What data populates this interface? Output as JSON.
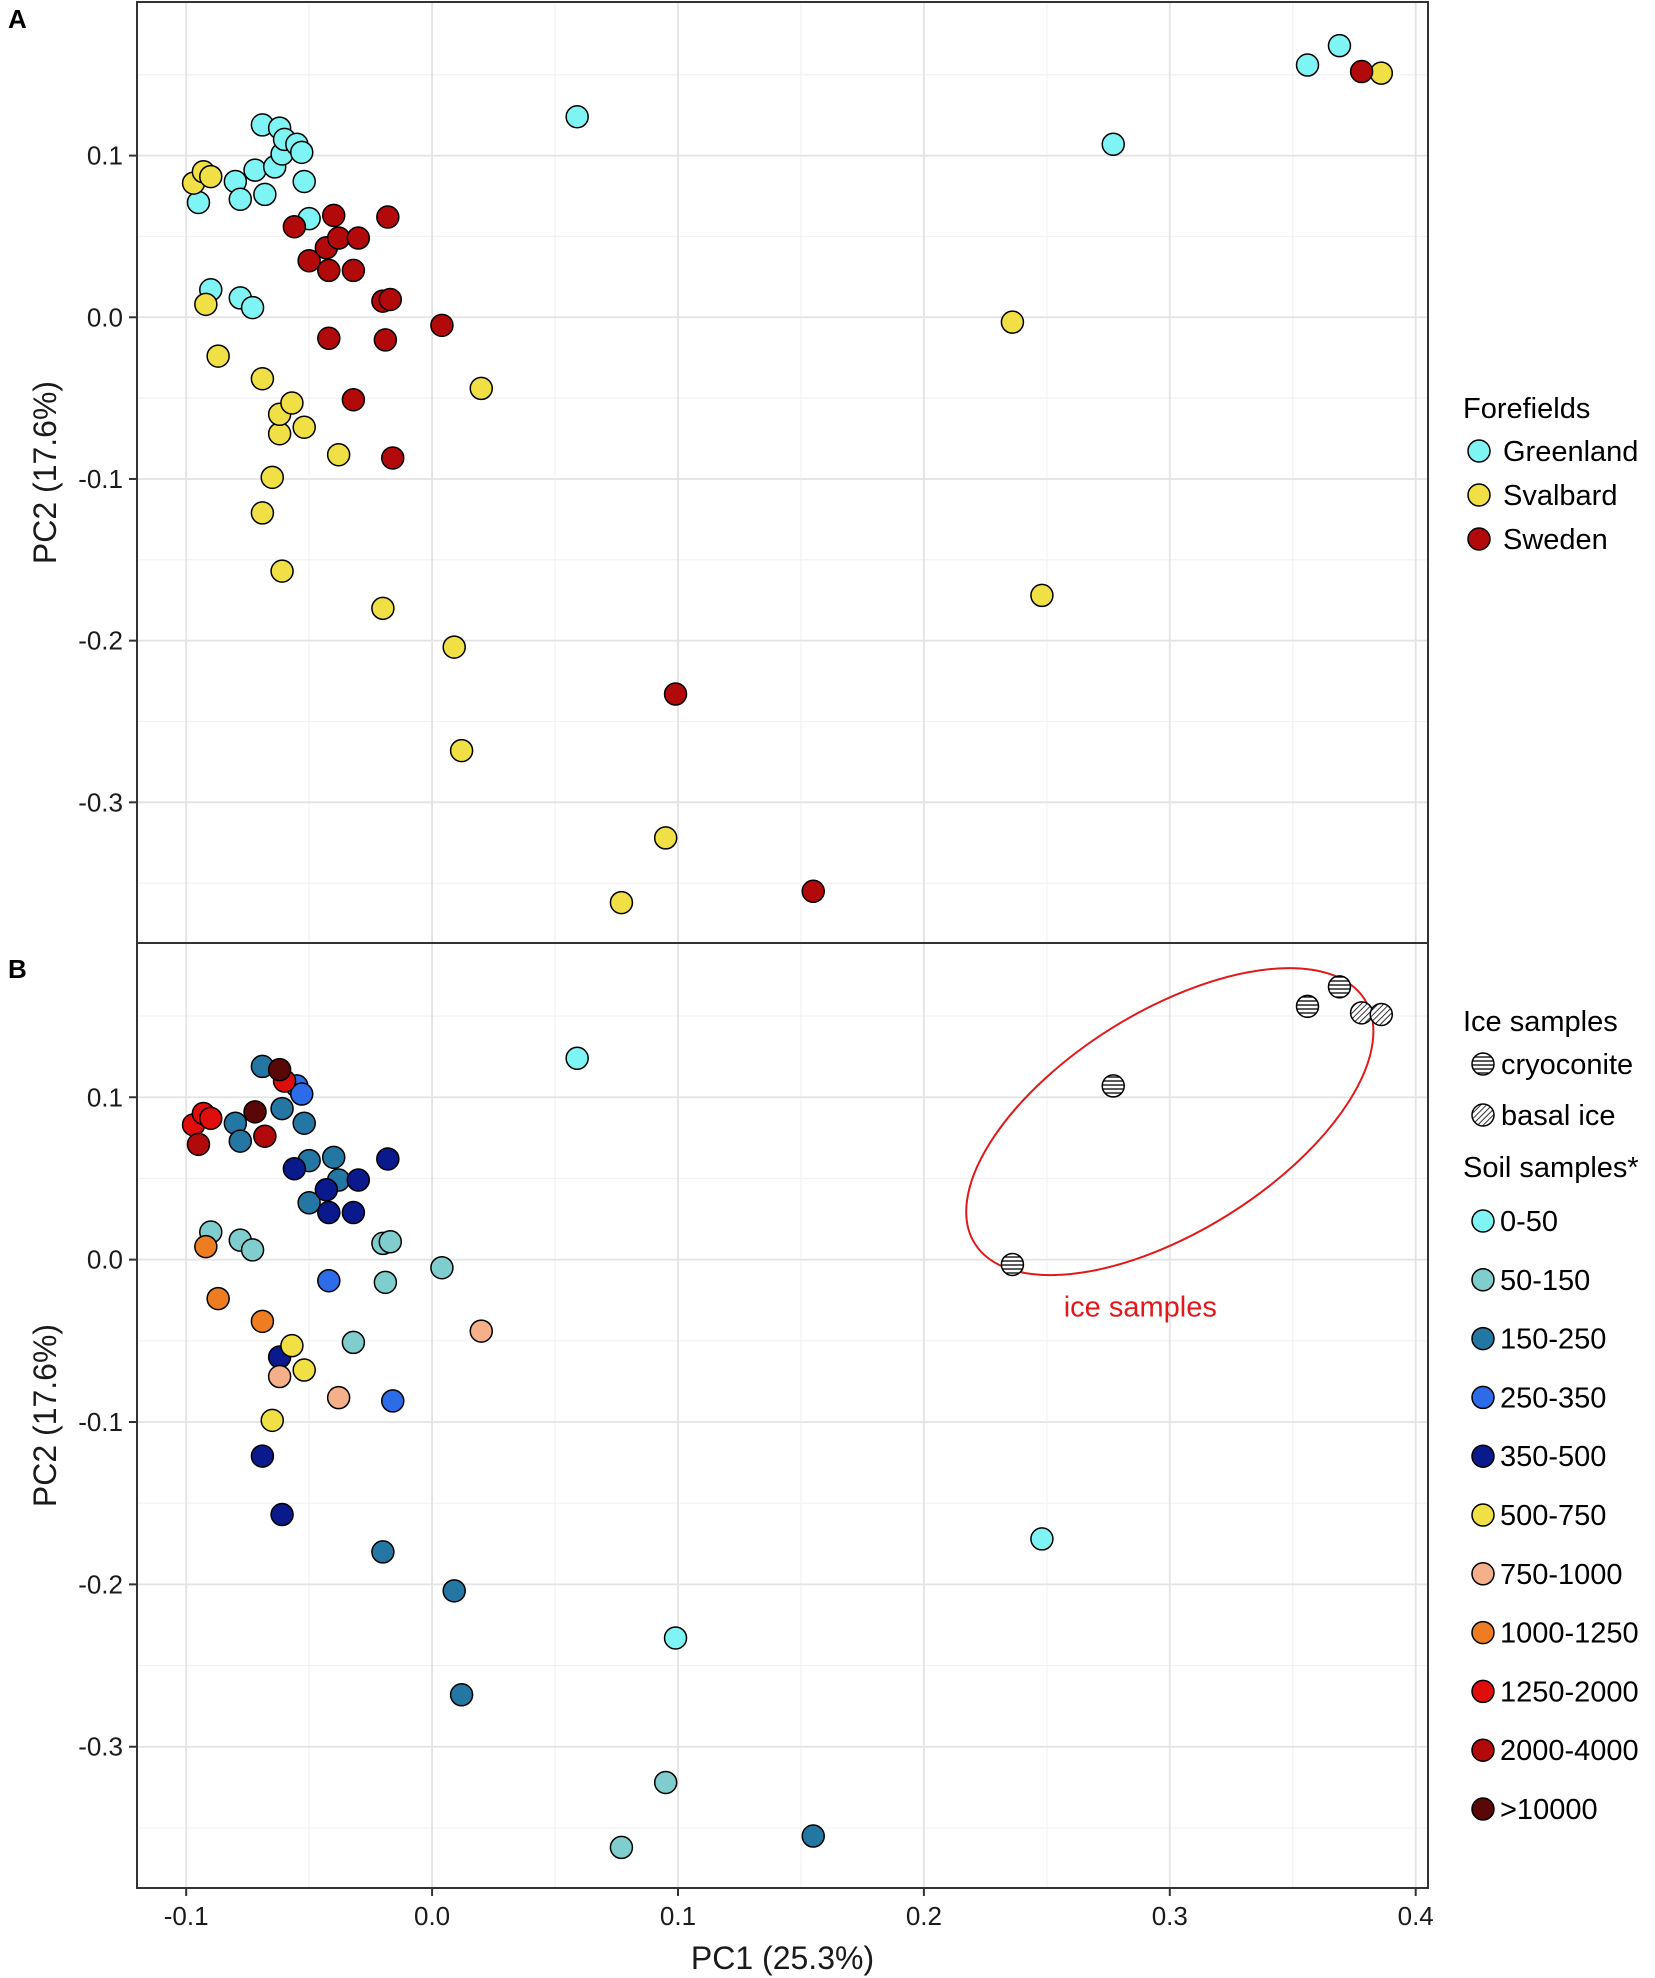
{
  "chart_data": [
    {
      "panel": "A",
      "type": "scatter",
      "xlabel": "PC1 (25.3%)",
      "ylabel": "PC2 (17.6%)",
      "xlim": [
        -0.12,
        0.405
      ],
      "ylim": [
        -0.387,
        0.195
      ],
      "xticks": [
        -0.1,
        0.0,
        0.1,
        0.2,
        0.3,
        0.4
      ],
      "xtick_labels": [
        "-0.1",
        "0.0",
        "0.1",
        "0.2",
        "0.3",
        "0.4"
      ],
      "yticks": [
        -0.3,
        -0.2,
        -0.1,
        0.0,
        0.1
      ],
      "ytick_labels": [
        "-0.3",
        "-0.2",
        "-0.1",
        "0.0",
        "0.1"
      ],
      "legend": {
        "title": "Forefields",
        "entries": [
          {
            "label": "Greenland",
            "color": "#7ef4f4"
          },
          {
            "label": "Svalbard",
            "color": "#f1e045"
          },
          {
            "label": "Sweden",
            "color": "#b20a0a"
          }
        ]
      },
      "series": [
        {
          "name": "Greenland",
          "color": "#7ef4f4",
          "points": [
            [
              -0.095,
              0.071
            ],
            [
              -0.09,
              0.017
            ],
            [
              -0.08,
              0.084
            ],
            [
              -0.078,
              0.073
            ],
            [
              -0.078,
              0.012
            ],
            [
              -0.073,
              0.006
            ],
            [
              -0.072,
              0.091
            ],
            [
              -0.069,
              0.119
            ],
            [
              -0.068,
              0.076
            ],
            [
              -0.064,
              0.093
            ],
            [
              -0.062,
              0.117
            ],
            [
              -0.061,
              0.101
            ],
            [
              -0.06,
              0.11
            ],
            [
              -0.055,
              0.107
            ],
            [
              -0.053,
              0.102
            ],
            [
              -0.052,
              0.084
            ],
            [
              -0.05,
              0.061
            ],
            [
              0.059,
              0.124
            ],
            [
              0.277,
              0.107
            ],
            [
              0.356,
              0.156
            ],
            [
              0.369,
              0.168
            ]
          ]
        },
        {
          "name": "Svalbard",
          "color": "#f1e045",
          "points": [
            [
              -0.097,
              0.083
            ],
            [
              -0.093,
              0.09
            ],
            [
              -0.09,
              0.087
            ],
            [
              -0.092,
              0.008
            ],
            [
              -0.087,
              -0.024
            ],
            [
              -0.069,
              -0.038
            ],
            [
              -0.065,
              -0.099
            ],
            [
              -0.062,
              -0.072
            ],
            [
              -0.062,
              -0.06
            ],
            [
              -0.057,
              -0.053
            ],
            [
              -0.052,
              -0.068
            ],
            [
              -0.069,
              -0.121
            ],
            [
              -0.061,
              -0.157
            ],
            [
              -0.038,
              -0.085
            ],
            [
              -0.02,
              -0.18
            ],
            [
              0.009,
              -0.204
            ],
            [
              0.02,
              -0.044
            ],
            [
              0.012,
              -0.268
            ],
            [
              0.077,
              -0.362
            ],
            [
              0.095,
              -0.322
            ],
            [
              0.236,
              -0.003
            ],
            [
              0.248,
              -0.172
            ],
            [
              0.386,
              0.151
            ]
          ]
        },
        {
          "name": "Sweden",
          "color": "#b20a0a",
          "points": [
            [
              -0.056,
              0.056
            ],
            [
              -0.05,
              0.035
            ],
            [
              -0.043,
              0.043
            ],
            [
              -0.042,
              0.029
            ],
            [
              -0.04,
              0.063
            ],
            [
              -0.038,
              0.049
            ],
            [
              -0.042,
              -0.013
            ],
            [
              -0.032,
              0.029
            ],
            [
              -0.03,
              0.049
            ],
            [
              -0.032,
              -0.051
            ],
            [
              -0.02,
              0.01
            ],
            [
              -0.017,
              0.011
            ],
            [
              -0.018,
              0.062
            ],
            [
              -0.019,
              -0.014
            ],
            [
              -0.016,
              -0.087
            ],
            [
              0.004,
              -0.005
            ],
            [
              0.099,
              -0.233
            ],
            [
              0.155,
              -0.355
            ],
            [
              0.378,
              0.152
            ]
          ]
        }
      ]
    },
    {
      "panel": "B",
      "type": "scatter",
      "xlabel": "PC1 (25.3%)",
      "ylabel": "PC2 (17.6%)",
      "xlim": [
        -0.12,
        0.405
      ],
      "ylim": [
        -0.387,
        0.195
      ],
      "xticks": [
        -0.1,
        0.0,
        0.1,
        0.2,
        0.3,
        0.4
      ],
      "xtick_labels": [
        "-0.1",
        "0.0",
        "0.1",
        "0.2",
        "0.3",
        "0.4"
      ],
      "yticks": [
        -0.3,
        -0.2,
        -0.1,
        0.0,
        0.1
      ],
      "ytick_labels": [
        "-0.3",
        "-0.2",
        "-0.1",
        "0.0",
        "0.1"
      ],
      "annotation": {
        "text": "ice samples",
        "shape": "ellipse",
        "color": "#e0191b"
      },
      "legend": {
        "ice_title": "Ice samples",
        "ice_entries": [
          {
            "label": "cryoconite",
            "pattern": "horizontal-stripes"
          },
          {
            "label": "basal ice",
            "pattern": "diagonal-stripes"
          }
        ],
        "soil_title": "Soil samples*",
        "soil_entries": [
          {
            "label": "0-50",
            "color": "#7ef4f4"
          },
          {
            "label": "50-150",
            "color": "#7fcdcd"
          },
          {
            "label": "150-250",
            "color": "#2577a3"
          },
          {
            "label": "250-350",
            "color": "#2d6ce8"
          },
          {
            "label": "350-500",
            "color": "#0a1a8c"
          },
          {
            "label": "500-750",
            "color": "#f1e045"
          },
          {
            "label": "750-1000",
            "color": "#f5b08a"
          },
          {
            "label": "1000-1250",
            "color": "#ee7d22"
          },
          {
            "label": "1250-2000",
            "color": "#e00d0d"
          },
          {
            "label": "2000-4000",
            "color": "#b20a0a"
          },
          {
            "label": ">10000",
            "color": "#5a0707"
          }
        ]
      },
      "series": [
        {
          "name": "cryoconite",
          "pattern": "horizontal-stripes",
          "points": [
            [
              0.236,
              -0.003
            ],
            [
              0.277,
              0.107
            ],
            [
              0.356,
              0.156
            ],
            [
              0.369,
              0.168
            ]
          ]
        },
        {
          "name": "basal ice",
          "pattern": "diagonal-stripes",
          "points": [
            [
              0.378,
              0.152
            ],
            [
              0.386,
              0.151
            ]
          ]
        },
        {
          "name": "0-50",
          "color": "#7ef4f4",
          "points": [
            [
              0.059,
              0.124
            ],
            [
              0.099,
              -0.233
            ],
            [
              0.248,
              -0.172
            ]
          ]
        },
        {
          "name": "50-150",
          "color": "#7fcdcd",
          "points": [
            [
              -0.09,
              0.017
            ],
            [
              -0.078,
              0.012
            ],
            [
              -0.073,
              0.006
            ],
            [
              -0.032,
              -0.051
            ],
            [
              -0.02,
              0.01
            ],
            [
              -0.017,
              0.011
            ],
            [
              -0.019,
              -0.014
            ],
            [
              0.004,
              -0.005
            ],
            [
              0.077,
              -0.362
            ],
            [
              0.095,
              -0.322
            ]
          ]
        },
        {
          "name": "150-250",
          "color": "#2577a3",
          "points": [
            [
              -0.08,
              0.084
            ],
            [
              -0.078,
              0.073
            ],
            [
              -0.069,
              0.119
            ],
            [
              -0.061,
              0.093
            ],
            [
              -0.052,
              0.084
            ],
            [
              -0.05,
              0.061
            ],
            [
              -0.05,
              0.035
            ],
            [
              -0.04,
              0.063
            ],
            [
              -0.038,
              0.049
            ],
            [
              -0.02,
              -0.18
            ],
            [
              0.009,
              -0.204
            ],
            [
              0.012,
              -0.268
            ],
            [
              0.155,
              -0.355
            ]
          ]
        },
        {
          "name": "250-350",
          "color": "#2d6ce8",
          "points": [
            [
              -0.055,
              0.107
            ],
            [
              -0.053,
              0.102
            ],
            [
              -0.042,
              -0.013
            ],
            [
              -0.016,
              -0.087
            ]
          ]
        },
        {
          "name": "350-500",
          "color": "#0a1a8c",
          "points": [
            [
              -0.056,
              0.056
            ],
            [
              -0.043,
              0.043
            ],
            [
              -0.042,
              0.029
            ],
            [
              -0.032,
              0.029
            ],
            [
              -0.03,
              0.049
            ],
            [
              -0.018,
              0.062
            ],
            [
              -0.062,
              -0.06
            ],
            [
              -0.069,
              -0.121
            ],
            [
              -0.061,
              -0.157
            ]
          ]
        },
        {
          "name": "500-750",
          "color": "#f1e045",
          "points": [
            [
              -0.057,
              -0.053
            ],
            [
              -0.052,
              -0.068
            ],
            [
              -0.065,
              -0.099
            ]
          ]
        },
        {
          "name": "750-1000",
          "color": "#f5b08a",
          "points": [
            [
              0.02,
              -0.044
            ],
            [
              -0.038,
              -0.085
            ],
            [
              -0.062,
              -0.072
            ]
          ]
        },
        {
          "name": "1000-1250",
          "color": "#ee7d22",
          "points": [
            [
              -0.092,
              0.008
            ],
            [
              -0.087,
              -0.024
            ],
            [
              -0.069,
              -0.038
            ]
          ]
        },
        {
          "name": "1250-2000",
          "color": "#e00d0d",
          "points": [
            [
              -0.097,
              0.083
            ],
            [
              -0.093,
              0.09
            ],
            [
              -0.09,
              0.087
            ],
            [
              -0.06,
              0.11
            ]
          ]
        },
        {
          "name": "2000-4000",
          "color": "#b20a0a",
          "points": [
            [
              -0.095,
              0.071
            ],
            [
              -0.068,
              0.076
            ]
          ]
        },
        {
          "name": ">10000",
          "color": "#5a0707",
          "points": [
            [
              -0.072,
              0.091
            ],
            [
              -0.062,
              0.117
            ]
          ]
        }
      ]
    }
  ]
}
